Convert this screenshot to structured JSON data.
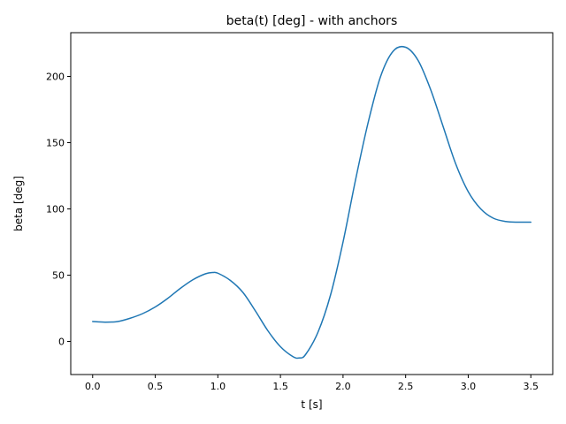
{
  "chart_data": {
    "type": "line",
    "title": "beta(t) [deg] - with anchors",
    "xlabel": "t [s]",
    "ylabel": "beta [deg]",
    "xlim": [
      -0.175,
      3.675
    ],
    "ylim": [
      -25,
      233
    ],
    "xticks": [
      0.0,
      0.5,
      1.0,
      1.5,
      2.0,
      2.5,
      3.0,
      3.5
    ],
    "xtick_labels": [
      "0.0",
      "0.5",
      "1.0",
      "1.5",
      "2.0",
      "2.5",
      "3.0",
      "3.5"
    ],
    "yticks": [
      0,
      50,
      100,
      150,
      200
    ],
    "ytick_labels": [
      "0",
      "50",
      "100",
      "150",
      "200"
    ],
    "grid": false,
    "legend": "none",
    "series": [
      {
        "color": "#1f77b4",
        "x": [
          0.0,
          0.1,
          0.2,
          0.3,
          0.4,
          0.5,
          0.6,
          0.7,
          0.8,
          0.9,
          0.96,
          1.0,
          1.1,
          1.2,
          1.3,
          1.4,
          1.5,
          1.6,
          1.65,
          1.7,
          1.8,
          1.9,
          2.0,
          2.1,
          2.2,
          2.3,
          2.4,
          2.5,
          2.6,
          2.7,
          2.8,
          2.9,
          3.0,
          3.1,
          3.2,
          3.3,
          3.4,
          3.5
        ],
        "y": [
          15,
          14.5,
          15,
          17.5,
          21,
          26,
          32.5,
          40,
          46.5,
          51,
          52,
          51.5,
          46,
          37,
          23,
          8,
          -4,
          -11.5,
          -12.5,
          -10,
          7,
          35,
          75,
          122,
          165,
          200,
          219,
          222,
          212,
          190,
          162,
          134,
          113,
          100,
          93,
          90.5,
          90,
          90
        ]
      }
    ]
  }
}
